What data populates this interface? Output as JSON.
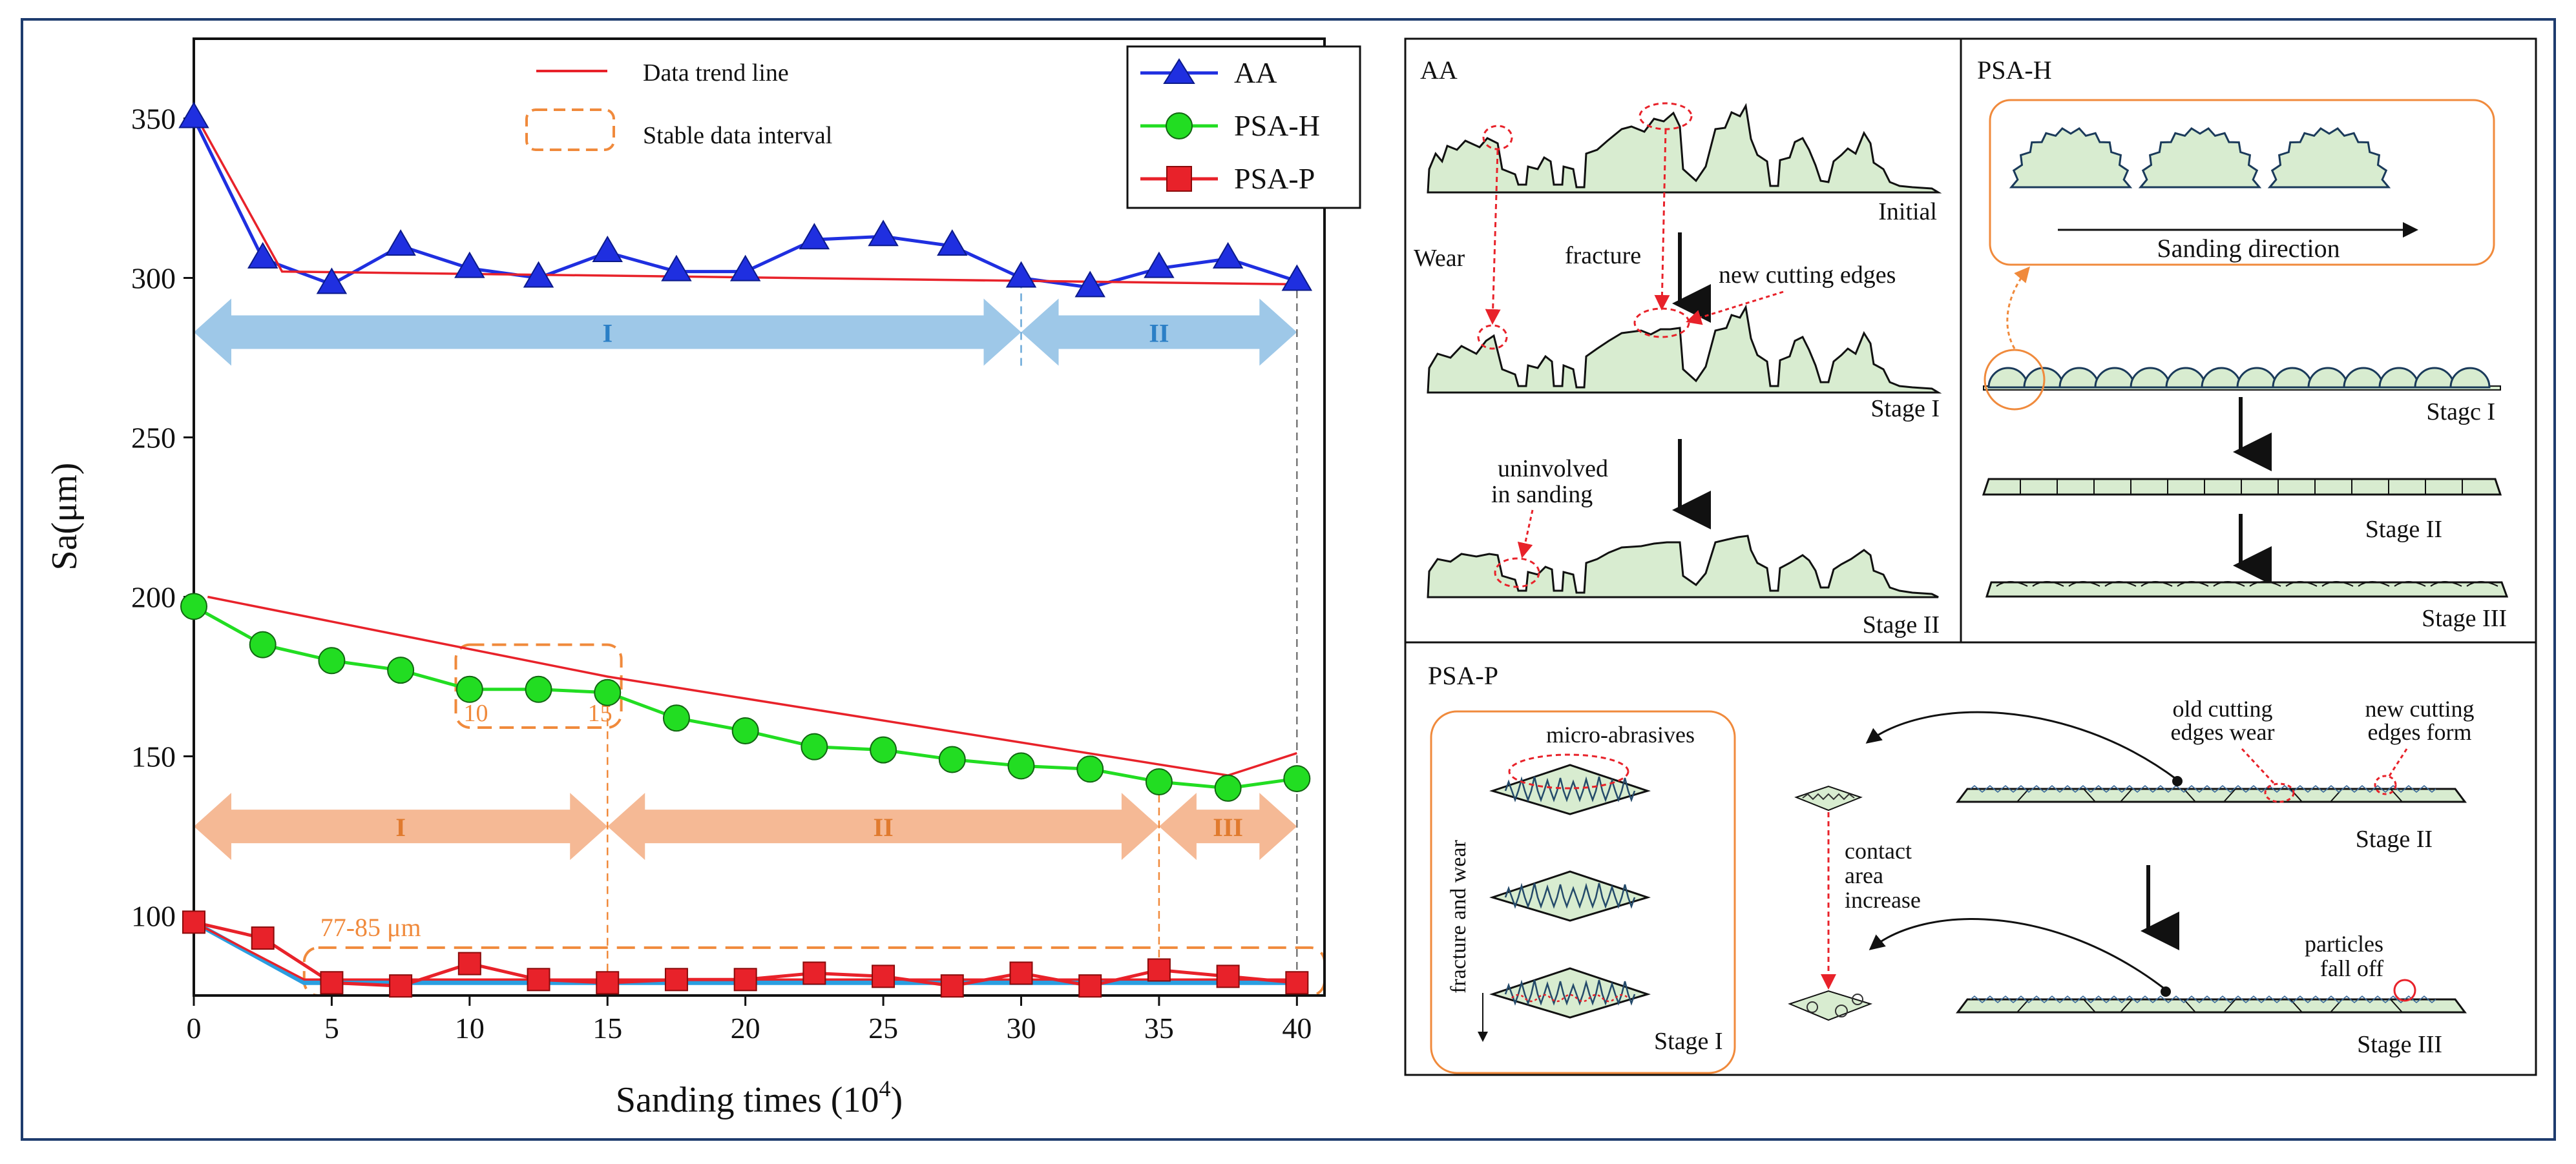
{
  "chart_data": {
    "type": "line",
    "xlabel": "Sanding times (10",
    "xlabel_sup": "4",
    "xlabel_close": ")",
    "ylabel": "Sa(μm)",
    "xlim": [
      0,
      41
    ],
    "ylim": [
      75,
      375
    ],
    "x_ticks": [
      0,
      5,
      10,
      15,
      20,
      25,
      30,
      35,
      40
    ],
    "y_ticks": [
      100,
      150,
      200,
      250,
      300,
      350
    ],
    "series": [
      {
        "name": "AA",
        "color": "#1f2fe0",
        "marker": "triangle",
        "x": [
          0,
          2.5,
          5,
          7.5,
          10,
          12.5,
          15,
          17.5,
          20,
          22.5,
          25,
          27.5,
          30,
          32.5,
          35,
          37.5,
          40
        ],
        "values": [
          350,
          306,
          298,
          310,
          303,
          300,
          308,
          302,
          302,
          312,
          313,
          310,
          300,
          297,
          303,
          306,
          299
        ]
      },
      {
        "name": "PSA-H",
        "color": "#22dd22",
        "marker": "circle",
        "x": [
          0,
          2.5,
          5,
          7.5,
          10,
          12.5,
          15,
          17.5,
          20,
          22.5,
          25,
          27.5,
          30,
          32.5,
          35,
          37.5,
          40
        ],
        "values": [
          197,
          185,
          180,
          177,
          171,
          171,
          170,
          162,
          158,
          153,
          152,
          149,
          147,
          146,
          142,
          140,
          143
        ]
      },
      {
        "name": "PSA-P",
        "color": "#e8222a",
        "marker": "square",
        "x": [
          0,
          2.5,
          5,
          7.5,
          10,
          12.5,
          15,
          17.5,
          20,
          22.5,
          25,
          27.5,
          30,
          32.5,
          35,
          37.5,
          40
        ],
        "values": [
          98,
          93,
          79,
          78,
          85,
          80,
          79,
          80,
          80,
          82,
          81,
          78,
          82,
          78,
          83,
          81,
          79
        ]
      }
    ],
    "trend_lines": [
      {
        "x": [
          0,
          3.2,
          40
        ],
        "values": [
          352,
          302,
          298
        ]
      },
      {
        "x": [
          0.5,
          15,
          37.5,
          40
        ],
        "values": [
          200,
          175,
          144,
          151
        ]
      },
      {
        "x": [
          0,
          4,
          40
        ],
        "values": [
          98,
          80,
          80
        ]
      }
    ],
    "psap_fit_line": {
      "x": [
        0,
        4,
        40
      ],
      "values": [
        98,
        79,
        79
      ],
      "color": "#2a9ee0"
    },
    "legend_left": {
      "trend": "Data trend line",
      "interval": "Stable data interval"
    },
    "psah_interval": {
      "x0": 9.5,
      "x1": 15.5,
      "y0": 159,
      "y1": 185,
      "label_left": "10",
      "label_right": "15"
    },
    "psap_interval": {
      "x0": 4,
      "x1": 41,
      "y0": 75,
      "y1": 90,
      "label": "77-85 μm"
    },
    "aa_stages": [
      {
        "label": "I",
        "x0": 0,
        "x1": 30
      },
      {
        "label": "II",
        "x0": 30,
        "x1": 40
      }
    ],
    "aa_stage_y": 283,
    "psah_stages": [
      {
        "label": "I",
        "x0": 0,
        "x1": 15
      },
      {
        "label": "II",
        "x0": 15,
        "x1": 35
      },
      {
        "label": "III",
        "x0": 35,
        "x1": 40
      }
    ],
    "psah_stage_y": 128,
    "colors": {
      "aa_arrow": "#9ec8e8",
      "aa_arrow_text": "#2b7fc6",
      "psah_arrow": "#f5b995",
      "psah_arrow_text": "#e07a2e",
      "orange": "#f08a3c",
      "trend": "#e8222a"
    }
  },
  "panels": {
    "aa": {
      "title": "AA",
      "wear": "Wear",
      "fracture": "fracture",
      "new_edges": "new cutting edges",
      "initial": "Initial",
      "stage1": "Stage I",
      "uninvolved_1": "uninvolved",
      "uninvolved_2": "in sanding",
      "stage2": "Stage II"
    },
    "psah": {
      "title": "PSA-H",
      "direction": "Sanding direction",
      "stage1": "Stagc I",
      "stage2": "Stage II",
      "stage3": "Stage III"
    },
    "psap": {
      "title": "PSA-P",
      "micro": "micro-abrasives",
      "fracture_wear": "fracture and wear",
      "stage1": "Stage I",
      "old1": "old  cutting",
      "old2": "edges wear",
      "new1": "new  cutting",
      "new2": "edges form",
      "stage2": "Stage II",
      "contact1": "contact",
      "contact2": "area",
      "contact3": "increase",
      "particles1": "particles",
      "particles2": "fall off",
      "stage3": "Stage III"
    },
    "fill_color": "#d8ecd0"
  }
}
